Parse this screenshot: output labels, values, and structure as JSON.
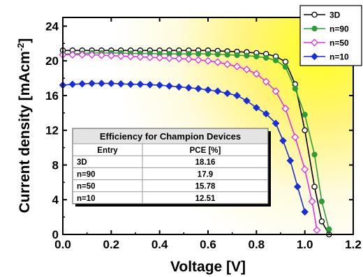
{
  "chart_data": {
    "type": "line",
    "xlabel": "Voltage [V]",
    "ylabel": "Current density [mAcm",
    "ylabel_sup": "-2",
    "ylabel_close": "]",
    "xlim": [
      0,
      1.2
    ],
    "ylim": [
      0,
      25
    ],
    "x_ticks": [
      0.0,
      0.2,
      0.4,
      0.6,
      0.8,
      1.0,
      1.2
    ],
    "x_tick_labels": [
      "0.0",
      "0.2",
      "0.4",
      "0.6",
      "0.8",
      "1.0",
      "1.2"
    ],
    "y_ticks": [
      0,
      4,
      8,
      12,
      16,
      20,
      24
    ],
    "y_tick_labels": [
      "0",
      "4",
      "8",
      "12",
      "16",
      "20",
      "24"
    ],
    "legend_position": "top-right",
    "background": "yellow radial glow, upper right",
    "series": [
      {
        "name": "3D",
        "color": "#000000",
        "marker": "circle-open",
        "x": [
          0.0,
          0.04,
          0.08,
          0.12,
          0.16,
          0.2,
          0.24,
          0.28,
          0.32,
          0.36,
          0.4,
          0.44,
          0.48,
          0.52,
          0.56,
          0.6,
          0.64,
          0.68,
          0.72,
          0.76,
          0.8,
          0.84,
          0.88,
          0.92,
          0.96,
          1.0,
          1.04,
          1.07,
          1.1
        ],
        "y": [
          21.2,
          21.2,
          21.2,
          21.2,
          21.2,
          21.2,
          21.2,
          21.2,
          21.2,
          21.2,
          21.2,
          21.2,
          21.2,
          21.2,
          21.2,
          21.2,
          21.15,
          21.1,
          21.05,
          21.0,
          20.9,
          20.8,
          20.5,
          19.9,
          17.3,
          12.0,
          5.5,
          1.5,
          0.0
        ]
      },
      {
        "name": "n=90",
        "color": "#2e9b3a",
        "marker": "circle-filled",
        "x": [
          0.0,
          0.04,
          0.08,
          0.12,
          0.16,
          0.2,
          0.24,
          0.28,
          0.32,
          0.36,
          0.4,
          0.44,
          0.48,
          0.52,
          0.56,
          0.6,
          0.64,
          0.68,
          0.72,
          0.76,
          0.8,
          0.84,
          0.88,
          0.92,
          0.96,
          1.0,
          1.04,
          1.07,
          1.1
        ],
        "y": [
          20.8,
          20.8,
          20.85,
          20.9,
          20.9,
          20.9,
          20.9,
          20.85,
          20.85,
          20.85,
          20.8,
          20.8,
          20.8,
          20.8,
          20.8,
          20.8,
          20.75,
          20.7,
          20.65,
          20.6,
          20.5,
          20.35,
          20.05,
          19.3,
          16.8,
          13.8,
          9.2,
          3.8,
          0.6
        ]
      },
      {
        "name": "n=50",
        "color": "#e030e0",
        "marker": "diamond-open",
        "x": [
          0.0,
          0.04,
          0.08,
          0.12,
          0.16,
          0.2,
          0.24,
          0.28,
          0.32,
          0.36,
          0.4,
          0.44,
          0.48,
          0.52,
          0.56,
          0.6,
          0.64,
          0.68,
          0.72,
          0.76,
          0.8,
          0.84,
          0.88,
          0.92,
          0.96,
          1.0,
          1.03,
          1.05
        ],
        "y": [
          20.7,
          20.7,
          20.7,
          20.7,
          20.65,
          20.6,
          20.55,
          20.5,
          20.45,
          20.4,
          20.35,
          20.3,
          20.25,
          20.2,
          20.1,
          20.0,
          19.85,
          19.6,
          19.35,
          19.0,
          18.5,
          17.6,
          16.5,
          14.5,
          11.2,
          7.5,
          3.8,
          0.5
        ]
      },
      {
        "name": "n=10",
        "color": "#1a2fd0",
        "marker": "diamond-filled",
        "x": [
          0.0,
          0.04,
          0.08,
          0.12,
          0.16,
          0.2,
          0.24,
          0.28,
          0.32,
          0.36,
          0.4,
          0.44,
          0.48,
          0.52,
          0.56,
          0.6,
          0.64,
          0.68,
          0.72,
          0.76,
          0.8,
          0.84,
          0.88,
          0.91,
          0.94,
          0.97,
          1.0
        ],
        "y": [
          17.2,
          17.3,
          17.35,
          17.4,
          17.4,
          17.4,
          17.35,
          17.3,
          17.3,
          17.25,
          17.2,
          17.1,
          17.0,
          16.9,
          16.8,
          16.65,
          16.5,
          16.25,
          16.0,
          15.4,
          14.6,
          13.9,
          12.8,
          10.8,
          8.5,
          5.5,
          2.6
        ]
      }
    ]
  },
  "inset_table": {
    "title": "Efficiency for Champion Devices",
    "headers": [
      "Entry",
      "PCE [%]"
    ],
    "rows": [
      [
        "3D",
        "18.16"
      ],
      [
        "n=90",
        "17.9"
      ],
      [
        "n=50",
        "15.78"
      ],
      [
        "n=10",
        "12.51"
      ]
    ]
  }
}
